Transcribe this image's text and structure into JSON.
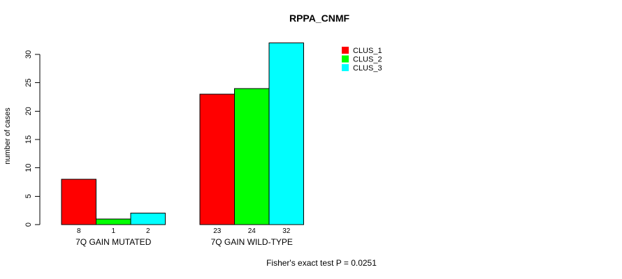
{
  "chart_data": {
    "type": "bar",
    "title": "RPPA_CNMF",
    "xlabel": "",
    "ylabel": "number of cases",
    "categories": [
      "7Q GAIN MUTATED",
      "7Q GAIN WILD-TYPE"
    ],
    "series": [
      {
        "name": "CLUS_1",
        "color": "#FF0000",
        "values": [
          8,
          23
        ]
      },
      {
        "name": "CLUS_2",
        "color": "#00FF00",
        "values": [
          1,
          24
        ]
      },
      {
        "name": "CLUS_3",
        "color": "#00FFFF",
        "values": [
          2,
          32
        ]
      }
    ],
    "yticks": [
      0,
      5,
      10,
      15,
      20,
      25,
      30
    ],
    "ylim": [
      0,
      32
    ],
    "grid": false,
    "legend_position": "top-right",
    "bar_borders": "#000000",
    "annotation": "Fisher's exact test P = 0.0251"
  }
}
